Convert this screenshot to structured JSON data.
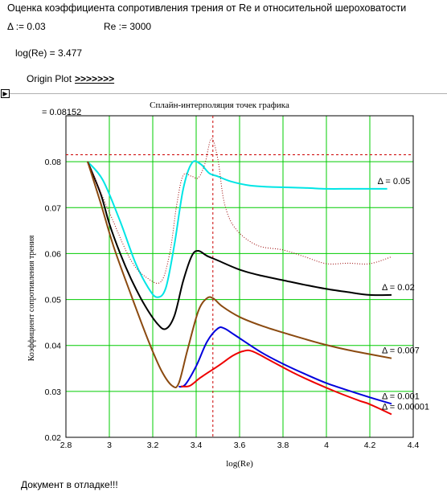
{
  "header": {
    "title": "Оценка коэффициента сопротивления трения от Re и относительной шероховатости",
    "delta_assign": "Δ := 0.03",
    "re_assign": "Re := 3000",
    "log_result": "log(Re) = 3.477",
    "origin_label": "Origin Plot",
    "origin_link": ">>>>>>>"
  },
  "region_marker": "▶",
  "status": "Документ в отладке!!!",
  "chart_data": {
    "type": "line",
    "title": "Сплайн-интерполяция точек графика",
    "xlabel": "log(Re)",
    "ylabel": "Коэффициент сопротивления трения",
    "xlim": [
      2.8,
      4.4
    ],
    "ylim": [
      0.02,
      0.09
    ],
    "xticks": [
      2.8,
      3,
      3.2,
      3.4,
      3.6,
      3.8,
      4,
      4.2,
      4.4
    ],
    "yticks": [
      0.02,
      0.03,
      0.04,
      0.05,
      0.06,
      0.07,
      0.08
    ],
    "grid": true,
    "grid_color": "#00cc00",
    "result_label": "= 0.08152",
    "marker": {
      "x": 3.477,
      "y": 0.08152,
      "color": "#cc0000"
    },
    "series": [
      {
        "name": "Δ = 0.05",
        "color": "#00e5e5",
        "x": [
          2.9,
          2.97,
          3.05,
          3.12,
          3.18,
          3.22,
          3.26,
          3.3,
          3.34,
          3.38,
          3.42,
          3.46,
          3.5,
          3.56,
          3.65,
          3.75,
          3.9,
          4.0,
          4.1,
          4.2,
          4.28
        ],
        "y": [
          0.08,
          0.076,
          0.067,
          0.058,
          0.0525,
          0.0505,
          0.0525,
          0.062,
          0.074,
          0.0797,
          0.0795,
          0.0775,
          0.0768,
          0.0757,
          0.0748,
          0.0745,
          0.0743,
          0.0741,
          0.0741,
          0.0741,
          0.0741
        ]
      },
      {
        "name": "Δ = 0.02",
        "color": "#000000",
        "x": [
          2.9,
          2.96,
          3.0,
          3.05,
          3.1,
          3.16,
          3.22,
          3.26,
          3.3,
          3.34,
          3.38,
          3.41,
          3.45,
          3.5,
          3.6,
          3.7,
          3.8,
          3.9,
          4.0,
          4.1,
          4.2,
          4.3
        ],
        "y": [
          0.08,
          0.073,
          0.0665,
          0.06,
          0.0545,
          0.049,
          0.0448,
          0.0436,
          0.0465,
          0.054,
          0.0595,
          0.0606,
          0.0595,
          0.0585,
          0.0565,
          0.0552,
          0.0542,
          0.0532,
          0.0523,
          0.0516,
          0.051,
          0.051
        ]
      },
      {
        "name": "Δ = 0.007",
        "color": "#8b4a10",
        "x": [
          2.9,
          2.96,
          3.02,
          3.1,
          3.18,
          3.24,
          3.29,
          3.32,
          3.36,
          3.41,
          3.45,
          3.48,
          3.52,
          3.6,
          3.7,
          3.8,
          3.9,
          4.0,
          4.1,
          4.2,
          4.3
        ],
        "y": [
          0.08,
          0.071,
          0.0615,
          0.051,
          0.041,
          0.0345,
          0.0312,
          0.0318,
          0.039,
          0.0475,
          0.0503,
          0.0502,
          0.0485,
          0.0462,
          0.0443,
          0.0428,
          0.0414,
          0.0401,
          0.039,
          0.0381,
          0.0372
        ]
      },
      {
        "name": "Δ = 0.001",
        "color": "#0000dd",
        "x": [
          3.32,
          3.35,
          3.4,
          3.45,
          3.5,
          3.53,
          3.58,
          3.7,
          3.8,
          3.9,
          4.0,
          4.1,
          4.2,
          4.3
        ],
        "y": [
          0.031,
          0.0315,
          0.0355,
          0.0408,
          0.0437,
          0.0437,
          0.0422,
          0.0385,
          0.036,
          0.0338,
          0.0318,
          0.0302,
          0.0287,
          0.0273
        ]
      },
      {
        "name": "Δ = 0.00001",
        "color": "#ee0000",
        "x": [
          3.33,
          3.37,
          3.42,
          3.5,
          3.57,
          3.62,
          3.66,
          3.75,
          3.85,
          3.95,
          4.05,
          4.15,
          4.2,
          4.3
        ],
        "y": [
          0.0311,
          0.0312,
          0.033,
          0.0355,
          0.0378,
          0.0388,
          0.0387,
          0.0365,
          0.034,
          0.0318,
          0.0298,
          0.028,
          0.0272,
          0.025
        ]
      },
      {
        "name": "",
        "color": "#990000",
        "dashed": true,
        "x": [
          2.9,
          3.0,
          3.1,
          3.18,
          3.24,
          3.28,
          3.31,
          3.34,
          3.38,
          3.41,
          3.44,
          3.47,
          3.5,
          3.53,
          3.58,
          3.68,
          3.8,
          3.9,
          4.0,
          4.1,
          4.2,
          4.3
        ],
        "y": [
          0.08,
          0.069,
          0.0585,
          0.0545,
          0.054,
          0.0605,
          0.0705,
          0.077,
          0.0768,
          0.0765,
          0.0795,
          0.085,
          0.0805,
          0.071,
          0.0655,
          0.0618,
          0.0608,
          0.0593,
          0.0578,
          0.0579,
          0.0578,
          0.0593
        ]
      }
    ]
  }
}
